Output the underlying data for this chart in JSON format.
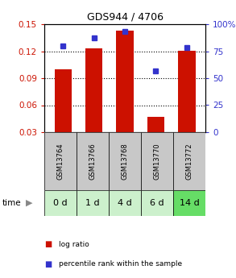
{
  "title": "GDS944 / 4706",
  "categories": [
    "GSM13764",
    "GSM13766",
    "GSM13768",
    "GSM13770",
    "GSM13772"
  ],
  "time_labels": [
    "0 d",
    "1 d",
    "4 d",
    "6 d",
    "14 d"
  ],
  "log_ratio": [
    0.1,
    0.123,
    0.143,
    0.047,
    0.12
  ],
  "percentile": [
    80,
    87,
    93,
    57,
    78
  ],
  "bar_color": "#cc1100",
  "dot_color": "#3333cc",
  "ylim_left": [
    0.03,
    0.15
  ],
  "ylim_right": [
    0,
    100
  ],
  "yticks_left": [
    0.03,
    0.06,
    0.09,
    0.12,
    0.15
  ],
  "yticks_right": [
    0,
    25,
    50,
    75,
    100
  ],
  "ytick_labels_left": [
    "0.03",
    "0.06",
    "0.09",
    "0.12",
    "0.15"
  ],
  "ytick_labels_right": [
    "0",
    "25",
    "50",
    "75",
    "100%"
  ],
  "bar_width": 0.55,
  "baseline": 0.03,
  "grid_yticks": [
    0.06,
    0.09,
    0.12
  ],
  "cell_color_gsm": "#c8c8c8",
  "cell_color_time_light": "#ccf0cc",
  "cell_color_time_dark": "#66dd66",
  "time_dark_indices": [
    4
  ],
  "legend_log_label": "log ratio",
  "legend_pct_label": "percentile rank within the sample",
  "figsize": [
    2.93,
    3.45
  ],
  "dpi": 100
}
